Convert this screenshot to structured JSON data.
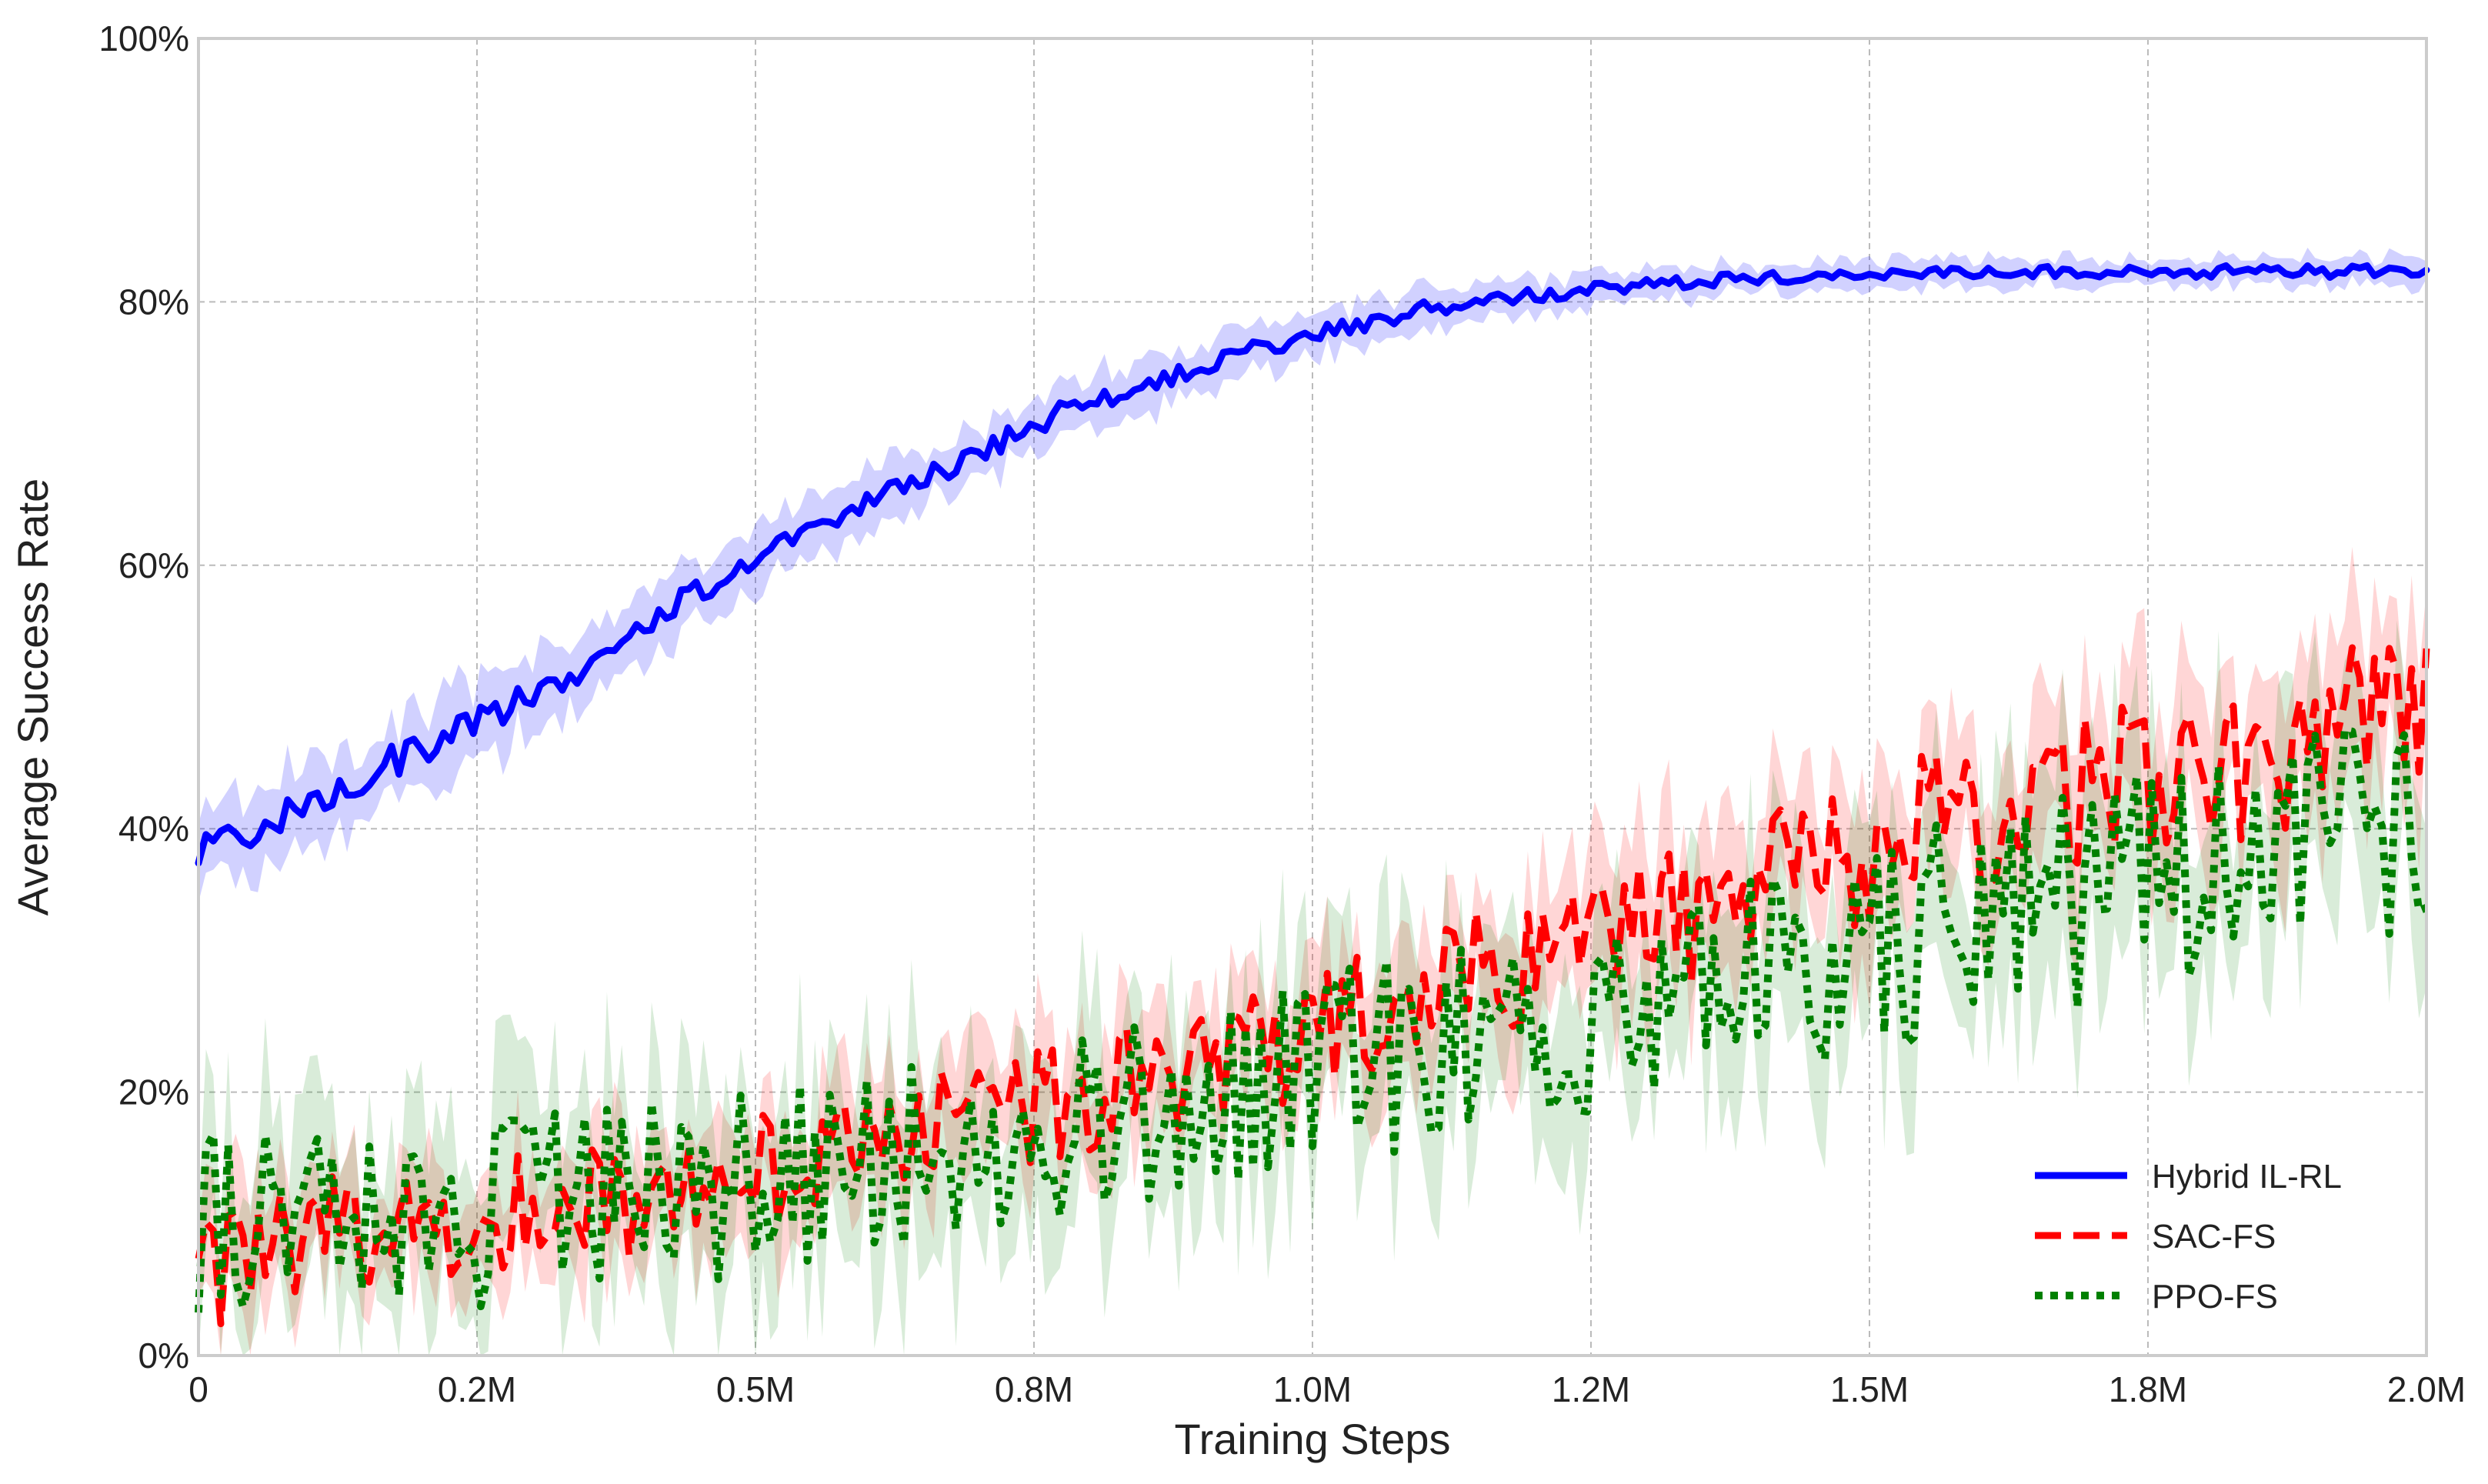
{
  "chart_data": {
    "type": "line",
    "title": "",
    "xlabel": "Training Steps",
    "ylabel": "Average Success Rate",
    "xlim": [
      0,
      2.0
    ],
    "ylim": [
      0,
      100
    ],
    "x_unit": "M steps",
    "y_unit": "%",
    "x_ticks": [
      "0",
      "0.2M",
      "0.5M",
      "0.8M",
      "1.0M",
      "1.2M",
      "1.5M",
      "1.8M",
      "2.0M"
    ],
    "x_tick_values": [
      0,
      0.25,
      0.5,
      0.75,
      1.0,
      1.25,
      1.5,
      1.75,
      2.0
    ],
    "y_ticks": [
      "0%",
      "20%",
      "40%",
      "60%",
      "80%",
      "100%"
    ],
    "y_tick_values": [
      0,
      20,
      40,
      60,
      80,
      100
    ],
    "grid": true,
    "legend_position": "bottom-right",
    "series": [
      {
        "name": "Hybrid IL-RL",
        "color": "#0000ff",
        "line_style": "solid",
        "x": [
          0,
          0.05,
          0.1,
          0.15,
          0.2,
          0.25,
          0.3,
          0.35,
          0.4,
          0.45,
          0.5,
          0.55,
          0.6,
          0.65,
          0.7,
          0.75,
          0.8,
          0.85,
          0.9,
          0.95,
          1.0,
          1.05,
          1.1,
          1.15,
          1.2,
          1.25,
          1.3,
          1.35,
          1.4,
          1.45,
          1.5,
          1.55,
          1.6,
          1.65,
          1.7,
          1.75,
          1.8,
          1.85,
          1.9,
          1.95,
          2.0
        ],
        "mean": [
          38,
          40,
          42,
          44,
          46,
          48,
          50,
          52.5,
          55.5,
          58,
          60.5,
          63,
          65,
          66.5,
          68.5,
          70.5,
          72.5,
          73.5,
          75,
          76.5,
          77.5,
          78.5,
          79.5,
          80,
          80.5,
          81,
          81.3,
          81.6,
          81.8,
          82,
          82.1,
          82.2,
          82.2,
          82.3,
          82.3,
          82.3,
          82.3,
          82.3,
          82.3,
          82.3,
          82.3
        ],
        "band": [
          3,
          3,
          3,
          3,
          3,
          2.8,
          2.6,
          2.5,
          2.4,
          2.3,
          2.2,
          2.1,
          2.0,
          2.0,
          2.0,
          2.0,
          2.0,
          1.9,
          1.8,
          1.7,
          1.6,
          1.5,
          1.4,
          1.3,
          1.2,
          1.2,
          1.1,
          1.1,
          1.0,
          1.0,
          1.0,
          1.0,
          1.0,
          1.0,
          1.0,
          1.0,
          1.0,
          1.0,
          1.0,
          1.0,
          1.0
        ]
      },
      {
        "name": "SAC-FS",
        "color": "#ff0000",
        "line_style": "dashed",
        "x": [
          0,
          0.05,
          0.1,
          0.15,
          0.2,
          0.25,
          0.3,
          0.35,
          0.4,
          0.45,
          0.5,
          0.55,
          0.6,
          0.65,
          0.7,
          0.75,
          0.8,
          0.85,
          0.9,
          0.95,
          1.0,
          1.05,
          1.1,
          1.15,
          1.2,
          1.25,
          1.3,
          1.35,
          1.4,
          1.45,
          1.5,
          1.55,
          1.6,
          1.65,
          1.7,
          1.75,
          1.8,
          1.85,
          1.9,
          1.95,
          2.0
        ],
        "mean": [
          6,
          8,
          9,
          9.5,
          10,
          10.5,
          11,
          11.5,
          12,
          13,
          14,
          15,
          16,
          17,
          18,
          19,
          20,
          21,
          22,
          23,
          24.5,
          26,
          27.5,
          29,
          30.5,
          32,
          33,
          34,
          35.5,
          37,
          38.5,
          40,
          41,
          42,
          43,
          44,
          45,
          46,
          47,
          48,
          49
        ],
        "band": [
          4,
          4,
          4,
          4,
          4,
          4,
          4,
          4,
          4,
          4,
          4,
          4,
          4,
          4,
          4,
          4,
          4,
          4,
          4,
          4,
          4.5,
          4.5,
          4.5,
          4.5,
          4.5,
          5,
          5,
          5,
          5,
          5,
          5.5,
          5.5,
          5.5,
          5.5,
          5.5,
          6,
          6,
          6,
          6,
          6,
          6
        ]
      },
      {
        "name": "PPO-FS",
        "color": "#008000",
        "line_style": "dotted",
        "x": [
          0,
          0.05,
          0.1,
          0.15,
          0.2,
          0.25,
          0.3,
          0.35,
          0.4,
          0.45,
          0.5,
          0.55,
          0.6,
          0.65,
          0.7,
          0.75,
          0.8,
          0.85,
          0.9,
          0.95,
          1.0,
          1.05,
          1.1,
          1.15,
          1.2,
          1.25,
          1.3,
          1.35,
          1.4,
          1.45,
          1.5,
          1.55,
          1.6,
          1.65,
          1.7,
          1.75,
          1.8,
          1.85,
          1.9,
          1.95,
          2.0
        ],
        "mean": [
          10,
          10,
          9.5,
          10,
          10,
          10.5,
          11,
          11.5,
          12,
          12.5,
          13,
          14,
          15,
          16,
          17,
          17.5,
          18,
          18.5,
          19,
          20,
          21,
          22,
          23,
          24,
          25,
          26,
          27,
          28,
          29,
          30,
          31,
          32,
          33,
          34,
          35,
          36,
          37,
          38,
          39,
          40,
          41
        ],
        "band": [
          6,
          6,
          6,
          6,
          6,
          6,
          6,
          6,
          6,
          6,
          6,
          6,
          6,
          6,
          6,
          6,
          6,
          6,
          6,
          6,
          6.5,
          6.5,
          6.5,
          6.5,
          6.5,
          6.5,
          6.5,
          6.5,
          6.5,
          6.5,
          7,
          7,
          7,
          7,
          7,
          7,
          7,
          7,
          7,
          7,
          7
        ]
      }
    ]
  }
}
